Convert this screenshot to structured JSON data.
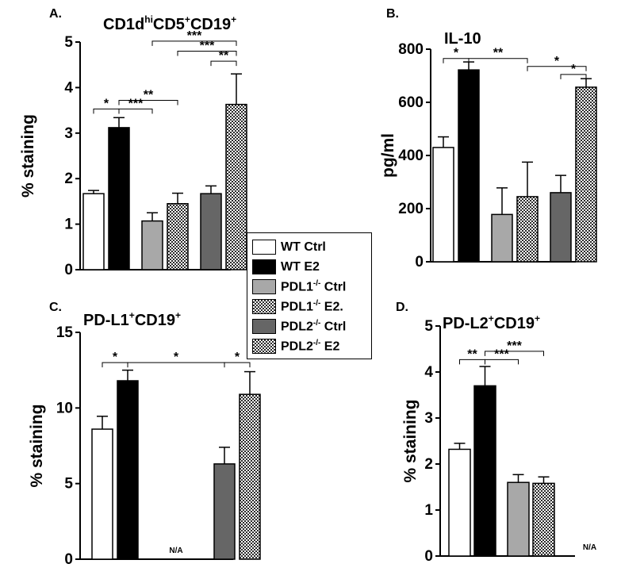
{
  "chart_data": [
    {
      "type": "bar",
      "panel": "A.",
      "title_parts": [
        {
          "t": "CD1d",
          "s": null
        },
        {
          "t": "hi",
          "s": "sup"
        },
        {
          "t": "CD5",
          "s": null
        },
        {
          "t": "+",
          "s": "sup"
        },
        {
          "t": "CD19",
          "s": null
        },
        {
          "t": "+",
          "s": "sup"
        }
      ],
      "ylabel": "% staining",
      "ylim": [
        0,
        5
      ],
      "yticks": [
        "0",
        "1",
        "2",
        "3",
        "4",
        "5"
      ],
      "values": [
        1.67,
        3.12,
        1.07,
        1.45,
        1.67,
        3.63
      ],
      "errors": [
        0.07,
        0.22,
        0.18,
        0.23,
        0.17,
        0.67
      ],
      "brackets": [
        {
          "from": 0,
          "to": 1,
          "y": 3.53,
          "label": "*"
        },
        {
          "from": 1,
          "to": 2,
          "y": 3.53,
          "label": "***"
        },
        {
          "from": 1,
          "to": 3,
          "y": 3.72,
          "label": "**"
        },
        {
          "from": 4,
          "to": 5,
          "y": 4.58,
          "label": "**"
        },
        {
          "from": 3,
          "to": 5,
          "y": 4.8,
          "label": "***"
        },
        {
          "from": 2,
          "to": 5,
          "y": 5.02,
          "label": "***"
        }
      ],
      "na_label": ""
    },
    {
      "type": "bar",
      "panel": "B.",
      "title_parts": [
        {
          "t": "IL-10",
          "s": null
        }
      ],
      "ylabel": "pg/ml",
      "ylim": [
        0,
        800
      ],
      "yticks": [
        "0",
        "200",
        "400",
        "600",
        "800"
      ],
      "values": [
        430,
        722,
        178,
        245,
        260,
        657
      ],
      "errors": [
        40,
        30,
        100,
        130,
        65,
        32
      ],
      "brackets": [
        {
          "from": 0,
          "to": 1,
          "y": 765,
          "label": "*"
        },
        {
          "from": 1,
          "to": 3,
          "y": 765,
          "label": "**"
        },
        {
          "from": 4,
          "to": 5,
          "y": 705,
          "label": "*"
        },
        {
          "from": 3,
          "to": 5,
          "y": 735,
          "label": "*"
        }
      ],
      "na_label": ""
    },
    {
      "type": "bar",
      "panel": "C.",
      "title_parts": [
        {
          "t": "PD-L1",
          "s": null
        },
        {
          "t": "+",
          "s": "sup"
        },
        {
          "t": "CD19",
          "s": null
        },
        {
          "t": "+",
          "s": "sup"
        }
      ],
      "ylabel": "% staining",
      "ylim": [
        0,
        15
      ],
      "yticks": [
        "0",
        "5",
        "10",
        "15"
      ],
      "values": [
        8.6,
        11.8,
        null,
        null,
        6.3,
        10.9
      ],
      "errors": [
        0.85,
        0.7,
        null,
        null,
        1.1,
        1.5
      ],
      "brackets": [
        {
          "from": 0,
          "to": 1,
          "y": 13.0,
          "label": "*"
        },
        {
          "from": 1,
          "to": 4,
          "y": 13.0,
          "label": "*"
        },
        {
          "from": 4,
          "to": 5,
          "y": 13.0,
          "label": "*"
        }
      ],
      "na_label": "N/A"
    },
    {
      "type": "bar",
      "panel": "D.",
      "title_parts": [
        {
          "t": "PD-L2",
          "s": null
        },
        {
          "t": "+",
          "s": "sup"
        },
        {
          "t": "CD19",
          "s": null
        },
        {
          "t": "+",
          "s": "sup"
        }
      ],
      "ylabel": "% staining",
      "ylim": [
        0,
        5
      ],
      "yticks": [
        "0",
        "1",
        "2",
        "3",
        "4",
        "5"
      ],
      "values": [
        2.32,
        3.7,
        1.6,
        1.58,
        null,
        null
      ],
      "errors": [
        0.13,
        0.42,
        0.17,
        0.14,
        null,
        null
      ],
      "brackets": [
        {
          "from": 0,
          "to": 1,
          "y": 4.27,
          "label": "**"
        },
        {
          "from": 1,
          "to": 2,
          "y": 4.27,
          "label": "***"
        },
        {
          "from": 1,
          "to": 3,
          "y": 4.45,
          "label": "***"
        }
      ],
      "na_label": "N/A"
    }
  ],
  "legend": [
    {
      "parts": [
        {
          "t": "WT Ctrl",
          "s": null
        }
      ],
      "fill": "white"
    },
    {
      "parts": [
        {
          "t": "WT  E2",
          "s": null
        }
      ],
      "fill": "black"
    },
    {
      "parts": [
        {
          "t": "PDL1",
          "s": null
        },
        {
          "t": "-/-",
          "s": "sup"
        },
        {
          "t": " Ctrl",
          "s": null
        }
      ],
      "fill": "lightgray"
    },
    {
      "parts": [
        {
          "t": "PDL1",
          "s": null
        },
        {
          "t": "-/-",
          "s": "sup"
        },
        {
          "t": " E2.",
          "s": null
        }
      ],
      "fill": "checker"
    },
    {
      "parts": [
        {
          "t": "PDL2",
          "s": null
        },
        {
          "t": "-/-",
          "s": "sup"
        },
        {
          "t": " Ctrl",
          "s": null
        }
      ],
      "fill": "darkgray"
    },
    {
      "parts": [
        {
          "t": "PDL2",
          "s": null
        },
        {
          "t": "-/-",
          "s": "sup"
        },
        {
          "t": " E2",
          "s": null
        }
      ],
      "fill": "checker"
    }
  ],
  "colors": {
    "white": "#ffffff",
    "black": "#000000",
    "lightgray": "#a8a8a8",
    "darkgray": "#666666"
  }
}
